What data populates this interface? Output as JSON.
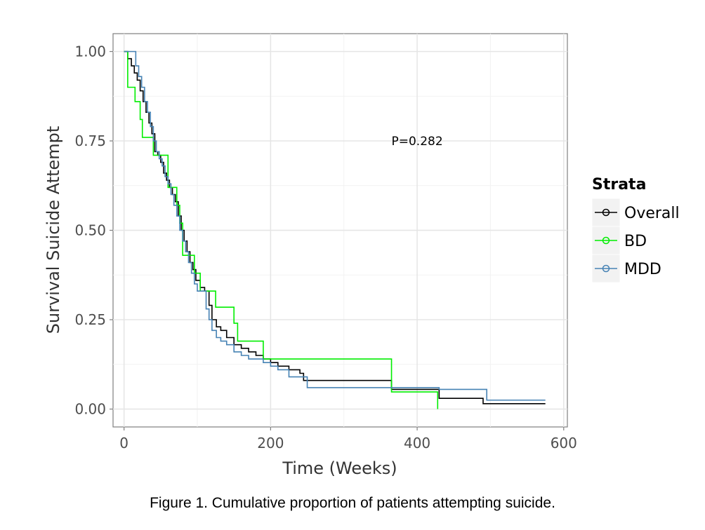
{
  "chart_data": {
    "type": "line",
    "step": true,
    "xlabel": "Time (Weeks)",
    "ylabel": "Survival Suicide Attempt",
    "xlim": [
      -15,
      605
    ],
    "ylim": [
      -0.05,
      1.05
    ],
    "xticks": [
      0,
      200,
      400,
      600
    ],
    "yticks": [
      0.0,
      0.25,
      0.5,
      0.75,
      1.0
    ],
    "xtick_labels": [
      "0",
      "200",
      "400",
      "600"
    ],
    "ytick_labels": [
      "0.00",
      "0.25",
      "0.50",
      "0.75",
      "1.00"
    ],
    "grid": true,
    "annotation": {
      "text": "P=0.282",
      "x": 400,
      "y": 0.75
    },
    "legend": {
      "title": "Strata",
      "placement": "right"
    },
    "series": [
      {
        "name": "Overall",
        "color": "#000000",
        "x": [
          0,
          5,
          10,
          14,
          18,
          22,
          26,
          30,
          34,
          38,
          42,
          46,
          50,
          54,
          58,
          62,
          66,
          70,
          74,
          78,
          82,
          86,
          90,
          94,
          98,
          104,
          110,
          116,
          120,
          126,
          132,
          140,
          150,
          160,
          170,
          180,
          190,
          200,
          210,
          225,
          240,
          245,
          300,
          365,
          430,
          490,
          575
        ],
        "y": [
          1.0,
          0.98,
          0.96,
          0.94,
          0.92,
          0.89,
          0.86,
          0.83,
          0.8,
          0.77,
          0.72,
          0.71,
          0.69,
          0.66,
          0.64,
          0.62,
          0.6,
          0.58,
          0.54,
          0.5,
          0.47,
          0.44,
          0.41,
          0.39,
          0.36,
          0.34,
          0.33,
          0.29,
          0.25,
          0.23,
          0.22,
          0.2,
          0.18,
          0.17,
          0.16,
          0.15,
          0.14,
          0.13,
          0.12,
          0.11,
          0.1,
          0.08,
          0.08,
          0.055,
          0.03,
          0.015,
          0.015
        ]
      },
      {
        "name": "BD",
        "color": "#00ee00",
        "x": [
          0,
          5,
          15,
          22,
          25,
          40,
          45,
          60,
          65,
          72,
          76,
          80,
          88,
          96,
          104,
          110,
          125,
          150,
          155,
          160,
          190,
          365,
          425,
          428
        ],
        "y": [
          1.0,
          0.9,
          0.86,
          0.81,
          0.76,
          0.71,
          0.71,
          0.62,
          0.62,
          0.57,
          0.52,
          0.43,
          0.43,
          0.38,
          0.33,
          0.33,
          0.285,
          0.24,
          0.19,
          0.19,
          0.14,
          0.048,
          0.048,
          0.0
        ]
      },
      {
        "name": "MDD",
        "color": "#4682b4",
        "x": [
          0,
          12,
          16,
          20,
          24,
          28,
          32,
          36,
          40,
          44,
          48,
          52,
          56,
          60,
          64,
          68,
          72,
          76,
          80,
          84,
          88,
          92,
          96,
          100,
          106,
          112,
          116,
          120,
          126,
          132,
          140,
          150,
          160,
          170,
          180,
          190,
          200,
          210,
          225,
          250,
          365,
          430,
          495,
          575
        ],
        "y": [
          1.0,
          1.0,
          0.96,
          0.93,
          0.9,
          0.86,
          0.83,
          0.79,
          0.75,
          0.72,
          0.7,
          0.68,
          0.65,
          0.63,
          0.6,
          0.57,
          0.54,
          0.5,
          0.47,
          0.44,
          0.41,
          0.38,
          0.35,
          0.33,
          0.33,
          0.28,
          0.25,
          0.22,
          0.2,
          0.19,
          0.18,
          0.16,
          0.15,
          0.14,
          0.14,
          0.13,
          0.12,
          0.11,
          0.09,
          0.06,
          0.06,
          0.055,
          0.025,
          0.025
        ]
      }
    ]
  },
  "caption": "Figure 1. Cumulative proportion of patients attempting suicide."
}
